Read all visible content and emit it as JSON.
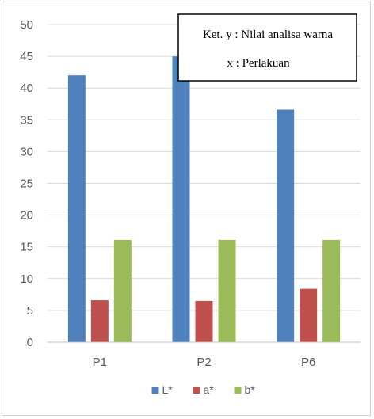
{
  "chart_data": {
    "type": "bar",
    "categories": [
      "P1",
      "P2",
      "P6"
    ],
    "series": [
      {
        "name": "L*",
        "values": [
          42,
          45,
          36.6
        ],
        "color": "#4f81bd"
      },
      {
        "name": "a*",
        "values": [
          6.6,
          6.5,
          8.4
        ],
        "color": "#c0504d"
      },
      {
        "name": "b*",
        "values": [
          16.1,
          16.1,
          16.1
        ],
        "color": "#9bbb59"
      }
    ],
    "ylim": [
      0,
      50
    ],
    "yticks": [
      0,
      5,
      10,
      15,
      20,
      25,
      30,
      35,
      40,
      45,
      50
    ],
    "grid": true,
    "legend": "bottom",
    "annotation": {
      "line1": "Ket. y : Nilai analisa warna",
      "line2": "x : Perlakuan"
    }
  }
}
